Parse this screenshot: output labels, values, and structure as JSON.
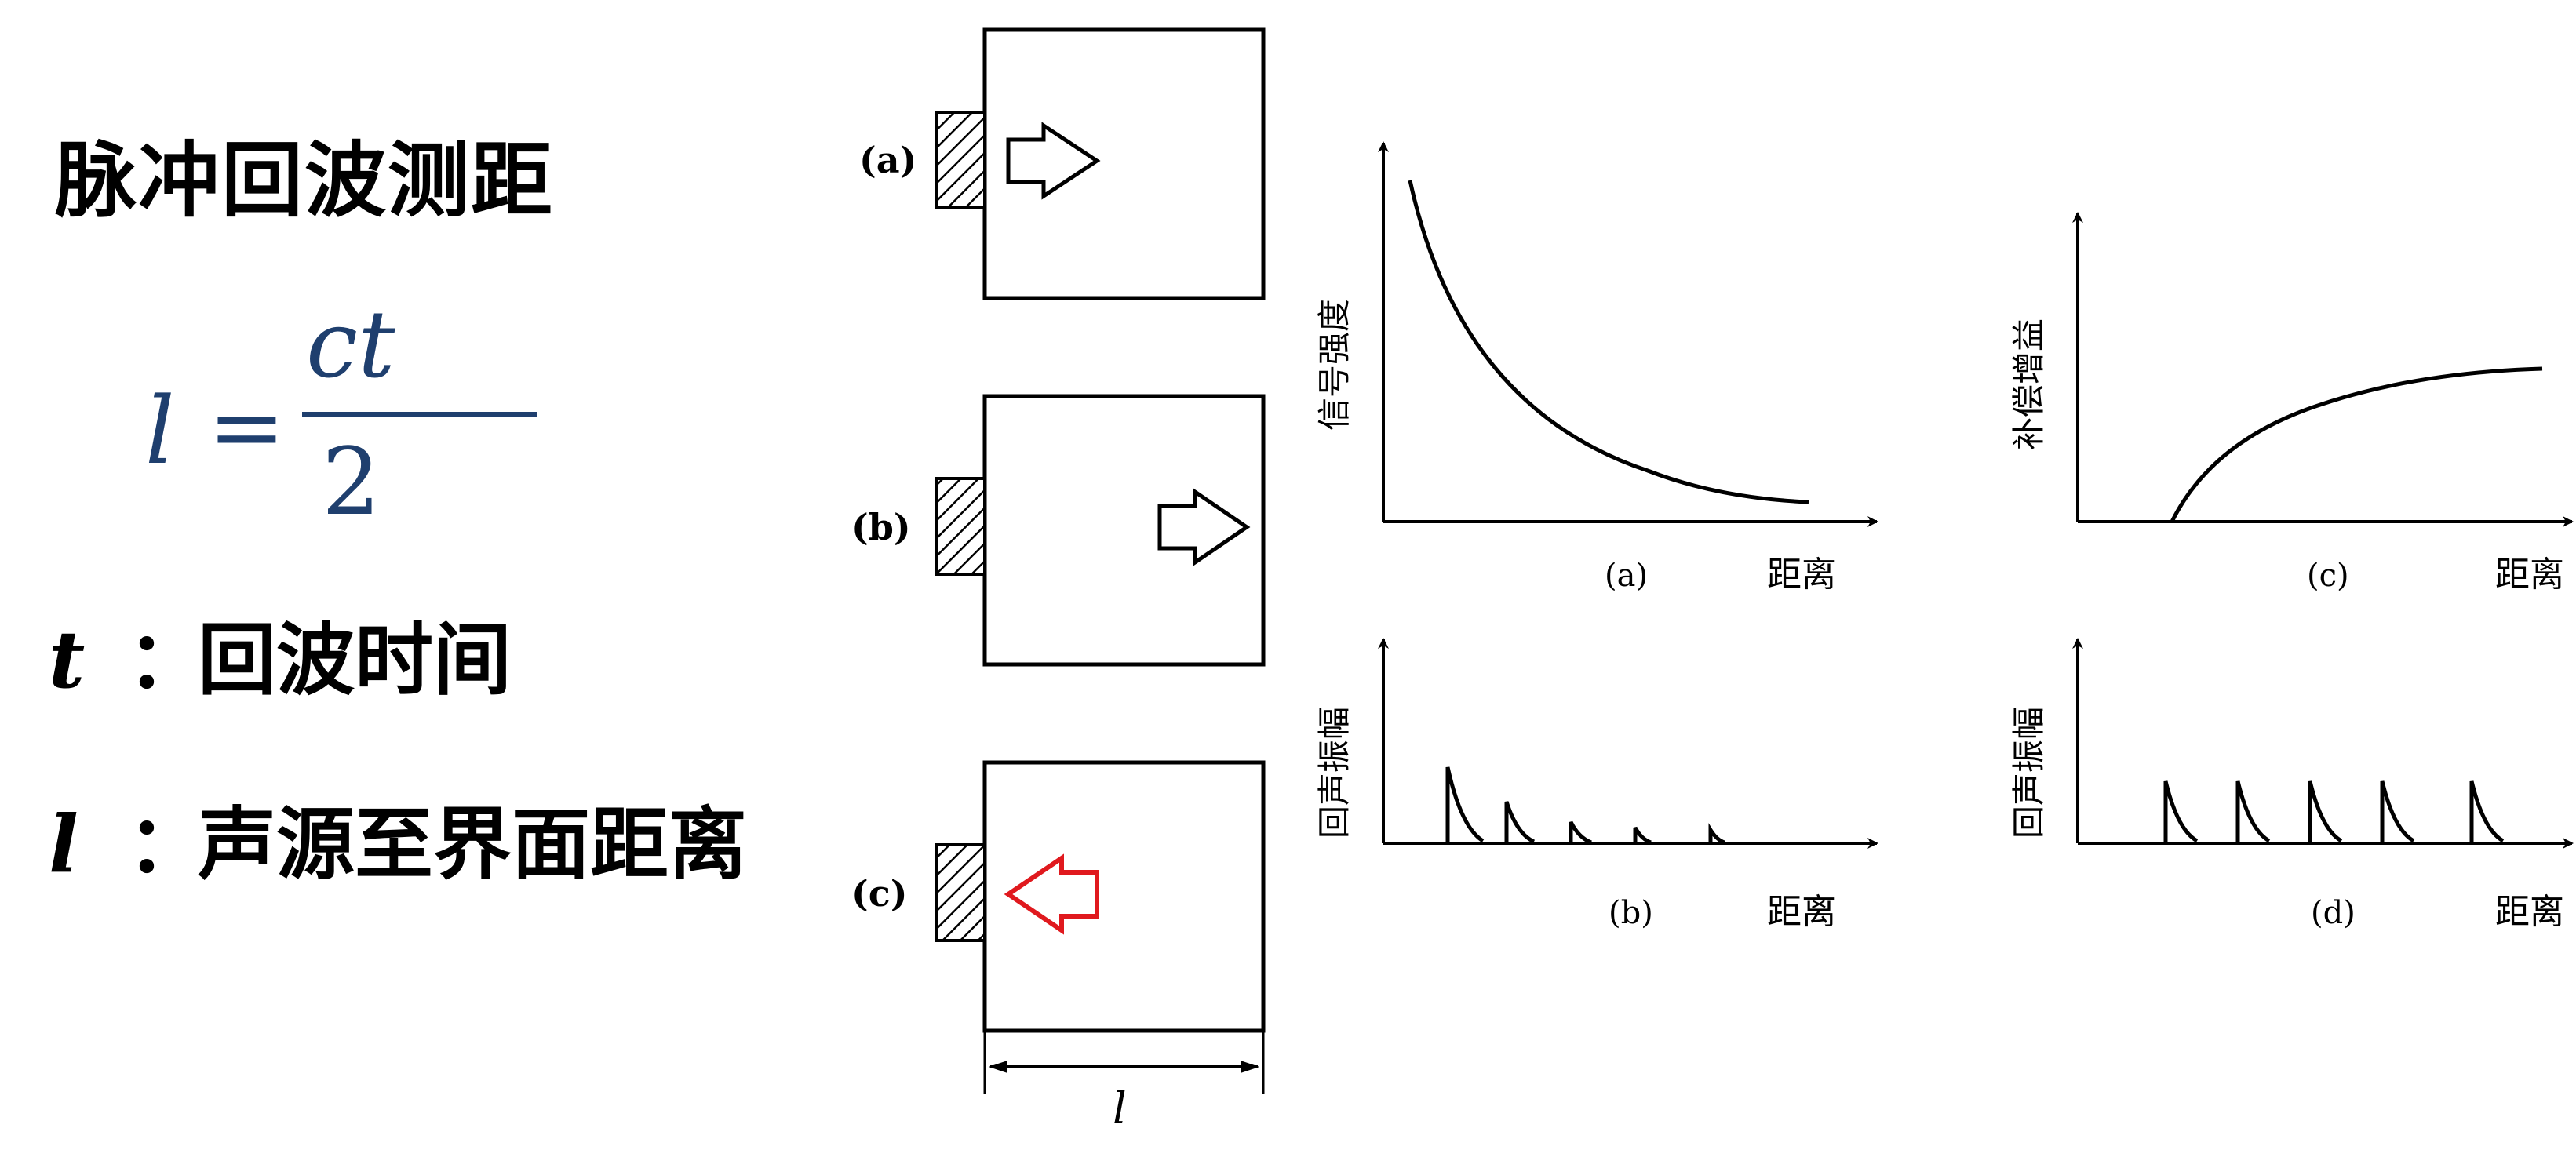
{
  "title": "脉冲回波测距",
  "formula": {
    "lhs": "l",
    "equals": "=",
    "numerator": "ct",
    "denominator": "2"
  },
  "definitions": [
    {
      "symbol": "t",
      "colon": "：",
      "text": "回波时间"
    },
    {
      "symbol": "l",
      "colon": "：",
      "text": "声源至界面距离"
    }
  ],
  "transducer_panels": {
    "labels": [
      "(a)",
      "(b)",
      "(c)"
    ],
    "dimension_label": "l",
    "highlight_color": "#e0191e"
  },
  "graphs": {
    "a": {
      "ylabel": "信号强度",
      "xlabel": "距离",
      "caption": "(a)"
    },
    "b": {
      "ylabel": "回声振幅",
      "xlabel": "距离",
      "caption": "(b)"
    },
    "c": {
      "ylabel": "补偿增益",
      "xlabel": "距离",
      "caption": "(c)"
    },
    "d": {
      "ylabel": "回声振幅",
      "xlabel": "距离",
      "caption": "(d)"
    }
  },
  "colors": {
    "formula": "#1f3f6e",
    "arrow_reflected": "#e0191e",
    "line": "#000000"
  }
}
